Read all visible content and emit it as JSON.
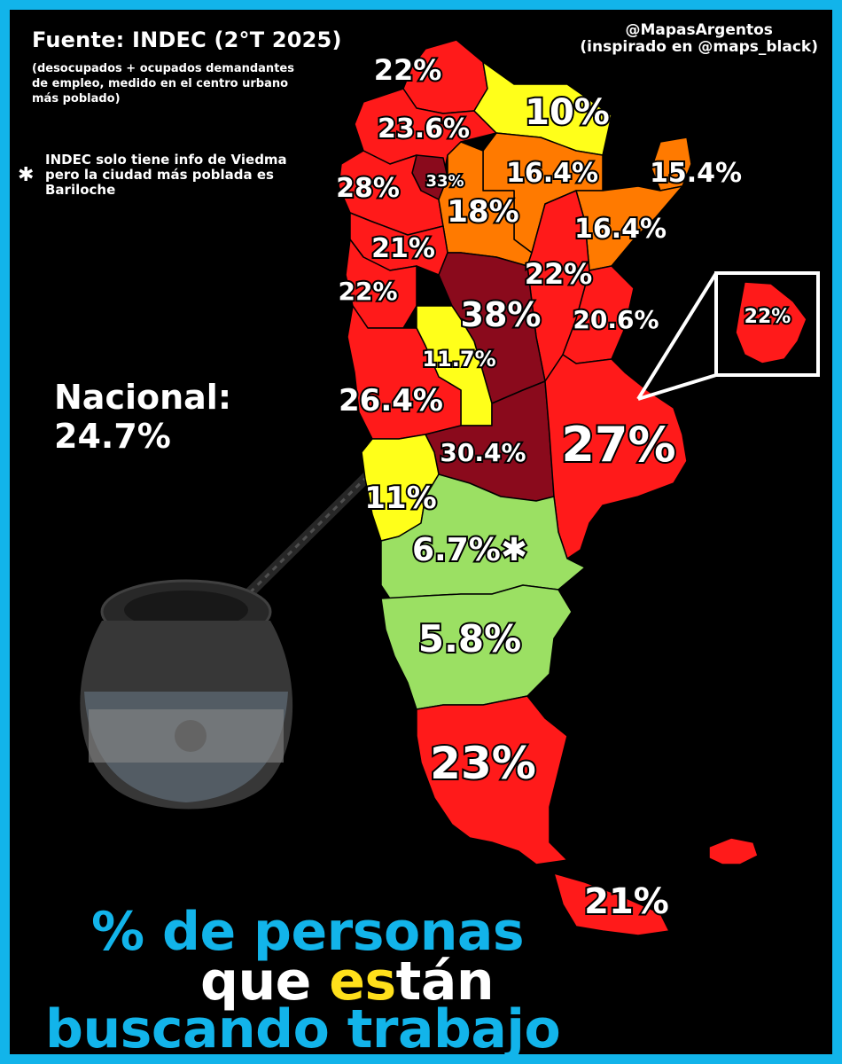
{
  "source": {
    "title": "Fuente: INDEC (2°T 2025)",
    "description": "(desocupados + ocupados demandantes de empleo, medido en el centro urbano más poblado)"
  },
  "credit": {
    "handle": "@MapasArgentos",
    "inspired": "(inspirado en @maps_black)"
  },
  "note": {
    "symbol": "✱",
    "text": "INDEC solo tiene info de Viedma pero la ciudad más poblada es Bariloche"
  },
  "national": {
    "label": "Nacional:",
    "value": "24.7%"
  },
  "title": {
    "line1": "% de personas",
    "line2_a": "que ",
    "line2_b": "es",
    "line2_c": "tán",
    "line3": "buscando trabajo"
  },
  "colors": {
    "frame": "#12b4ea",
    "red": "#ff1a1a",
    "dark_red": "#8a0a1c",
    "orange": "#ff7a00",
    "yellow": "#ffff1a",
    "green": "#9be063",
    "highlight": "#ffe01b"
  },
  "regions": [
    {
      "name": "Jujuy",
      "value": "22%",
      "color": "red"
    },
    {
      "name": "Salta",
      "value": "23.6%",
      "color": "red"
    },
    {
      "name": "Formosa",
      "value": "10%",
      "color": "yellow"
    },
    {
      "name": "Chaco",
      "value": "16.4%",
      "color": "orange"
    },
    {
      "name": "Misiones",
      "value": "15.4%",
      "color": "orange"
    },
    {
      "name": "Tucumán",
      "value": "33%",
      "color": "dark_red"
    },
    {
      "name": "Catamarca",
      "value": "28%",
      "color": "red"
    },
    {
      "name": "Santiago del Estero",
      "value": "18%",
      "color": "orange"
    },
    {
      "name": "Corrientes",
      "value": "16.4%",
      "color": "orange"
    },
    {
      "name": "La Rioja",
      "value": "21%",
      "color": "red"
    },
    {
      "name": "Santa Fe",
      "value": "22%",
      "color": "red"
    },
    {
      "name": "San Juan",
      "value": "22%",
      "color": "red"
    },
    {
      "name": "Córdoba",
      "value": "38%",
      "color": "dark_red"
    },
    {
      "name": "Entre Ríos",
      "value": "20.6%",
      "color": "red"
    },
    {
      "name": "San Luis",
      "value": "11.7%",
      "color": "yellow"
    },
    {
      "name": "Mendoza",
      "value": "26.4%",
      "color": "red"
    },
    {
      "name": "La Pampa",
      "value": "30.4%",
      "color": "dark_red"
    },
    {
      "name": "Buenos Aires",
      "value": "27%",
      "color": "red"
    },
    {
      "name": "Neuquén",
      "value": "11%",
      "color": "yellow"
    },
    {
      "name": "Río Negro",
      "value": "6.7%✱",
      "color": "green"
    },
    {
      "name": "Chubut",
      "value": "5.8%",
      "color": "green"
    },
    {
      "name": "Santa Cruz",
      "value": "23%",
      "color": "red"
    },
    {
      "name": "Tierra del Fuego",
      "value": "21%",
      "color": "red"
    },
    {
      "name": "CABA",
      "value": "22%",
      "color": "red"
    }
  ]
}
